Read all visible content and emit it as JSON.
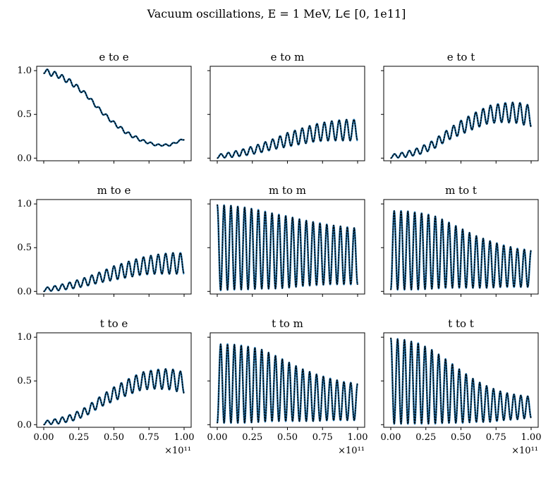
{
  "figure": {
    "suptitle": "Vacuum oscillations, E = 1 MeV, L∈ [0, 1e11]"
  },
  "chart_data": {
    "type": "line",
    "layout": "3x3 grid, shared y-axis per row, shared x-axis per column",
    "x_range": [
      0,
      100000000000.0
    ],
    "x_offset_label": "×10¹¹",
    "xticks": [
      0.0,
      0.25,
      0.5,
      0.75,
      1.0
    ],
    "xtick_labels": [
      "0.00",
      "0.25",
      "0.50",
      "0.75",
      "1.00"
    ],
    "ylim": [
      -0.03,
      1.05
    ],
    "yticks": [
      0.0,
      0.5,
      1.0
    ],
    "ytick_labels": [
      "0.0",
      "0.5",
      "1.0"
    ],
    "series_styles": [
      {
        "style": "solid",
        "color": "#1f77b4",
        "width": 2.5
      },
      {
        "style": "dotted",
        "color": "#000000",
        "width": 1.5
      }
    ],
    "grid": false,
    "panels": [
      {
        "title": "e to e",
        "x": [
          0,
          0.05,
          0.1,
          0.2,
          0.3,
          0.4,
          0.5,
          0.6,
          0.7,
          0.8,
          0.9,
          1.0
        ],
        "y": [
          1.0,
          0.97,
          0.95,
          0.86,
          0.73,
          0.55,
          0.4,
          0.28,
          0.2,
          0.15,
          0.15,
          0.22
        ],
        "fast_amplitude": [
          0.03,
          0.03,
          0.03,
          0.03,
          0.02,
          0.02,
          0.02,
          0.02,
          0.015,
          0.01,
          0.01,
          0.01
        ],
        "cycles": 19
      },
      {
        "title": "e to m",
        "x": [
          0,
          0.1,
          0.2,
          0.3,
          0.4,
          0.5,
          0.6,
          0.7,
          0.8,
          0.9,
          1.0
        ],
        "y": [
          0.02,
          0.04,
          0.07,
          0.11,
          0.16,
          0.21,
          0.25,
          0.29,
          0.31,
          0.32,
          0.32
        ],
        "fast_amplitude": [
          0.02,
          0.03,
          0.04,
          0.05,
          0.06,
          0.08,
          0.09,
          0.1,
          0.11,
          0.12,
          0.12
        ],
        "cycles": 19
      },
      {
        "title": "e to t",
        "x": [
          0,
          0.1,
          0.2,
          0.3,
          0.4,
          0.5,
          0.6,
          0.7,
          0.8,
          0.9,
          1.0
        ],
        "y": [
          0.02,
          0.04,
          0.08,
          0.15,
          0.26,
          0.35,
          0.43,
          0.5,
          0.52,
          0.52,
          0.48
        ],
        "fast_amplitude": [
          0.02,
          0.03,
          0.04,
          0.05,
          0.06,
          0.08,
          0.09,
          0.1,
          0.11,
          0.12,
          0.12
        ],
        "cycles": 19
      },
      {
        "title": "m to e",
        "x": [
          0,
          0.1,
          0.2,
          0.3,
          0.4,
          0.5,
          0.6,
          0.7,
          0.8,
          0.9,
          1.0
        ],
        "y": [
          0.02,
          0.04,
          0.07,
          0.11,
          0.16,
          0.21,
          0.25,
          0.29,
          0.31,
          0.32,
          0.32
        ],
        "fast_amplitude": [
          0.02,
          0.03,
          0.04,
          0.05,
          0.06,
          0.08,
          0.09,
          0.1,
          0.11,
          0.12,
          0.12
        ],
        "cycles": 19
      },
      {
        "title": "m to m",
        "x": [
          0,
          0.1,
          0.2,
          0.3,
          0.4,
          0.5,
          0.6,
          0.7,
          0.8,
          0.9,
          1.0
        ],
        "y": [
          0.5,
          0.5,
          0.49,
          0.48,
          0.46,
          0.45,
          0.44,
          0.43,
          0.42,
          0.41,
          0.4
        ],
        "fast_amplitude": [
          0.49,
          0.48,
          0.47,
          0.45,
          0.43,
          0.41,
          0.38,
          0.36,
          0.34,
          0.33,
          0.32
        ],
        "cycles": 20.5
      },
      {
        "title": "m to t",
        "x": [
          0,
          0.1,
          0.2,
          0.3,
          0.4,
          0.5,
          0.6,
          0.7,
          0.8,
          0.9,
          1.0
        ],
        "y": [
          0.47,
          0.47,
          0.46,
          0.45,
          0.42,
          0.38,
          0.34,
          0.31,
          0.29,
          0.27,
          0.26
        ],
        "fast_amplitude": [
          0.45,
          0.45,
          0.44,
          0.42,
          0.38,
          0.34,
          0.3,
          0.27,
          0.24,
          0.22,
          0.21
        ],
        "cycles": 20.5
      },
      {
        "title": "t to e",
        "x": [
          0,
          0.1,
          0.2,
          0.3,
          0.4,
          0.5,
          0.6,
          0.7,
          0.8,
          0.9,
          1.0
        ],
        "y": [
          0.02,
          0.04,
          0.08,
          0.15,
          0.26,
          0.35,
          0.43,
          0.5,
          0.52,
          0.52,
          0.48
        ],
        "fast_amplitude": [
          0.02,
          0.03,
          0.04,
          0.05,
          0.06,
          0.08,
          0.09,
          0.1,
          0.11,
          0.12,
          0.12
        ],
        "cycles": 19
      },
      {
        "title": "t to m",
        "x": [
          0,
          0.1,
          0.2,
          0.3,
          0.4,
          0.5,
          0.6,
          0.7,
          0.8,
          0.9,
          1.0
        ],
        "y": [
          0.47,
          0.47,
          0.46,
          0.45,
          0.42,
          0.38,
          0.34,
          0.31,
          0.29,
          0.27,
          0.26
        ],
        "fast_amplitude": [
          0.45,
          0.45,
          0.44,
          0.42,
          0.38,
          0.34,
          0.3,
          0.27,
          0.24,
          0.22,
          0.21
        ],
        "cycles": 20.5
      },
      {
        "title": "t to t",
        "x": [
          0,
          0.1,
          0.2,
          0.3,
          0.4,
          0.5,
          0.6,
          0.7,
          0.8,
          0.9,
          1.0
        ],
        "y": [
          0.5,
          0.49,
          0.47,
          0.43,
          0.38,
          0.32,
          0.27,
          0.23,
          0.21,
          0.2,
          0.2
        ],
        "fast_amplitude": [
          0.49,
          0.48,
          0.46,
          0.42,
          0.36,
          0.3,
          0.24,
          0.2,
          0.16,
          0.14,
          0.12
        ],
        "cycles": 20.5
      }
    ]
  }
}
